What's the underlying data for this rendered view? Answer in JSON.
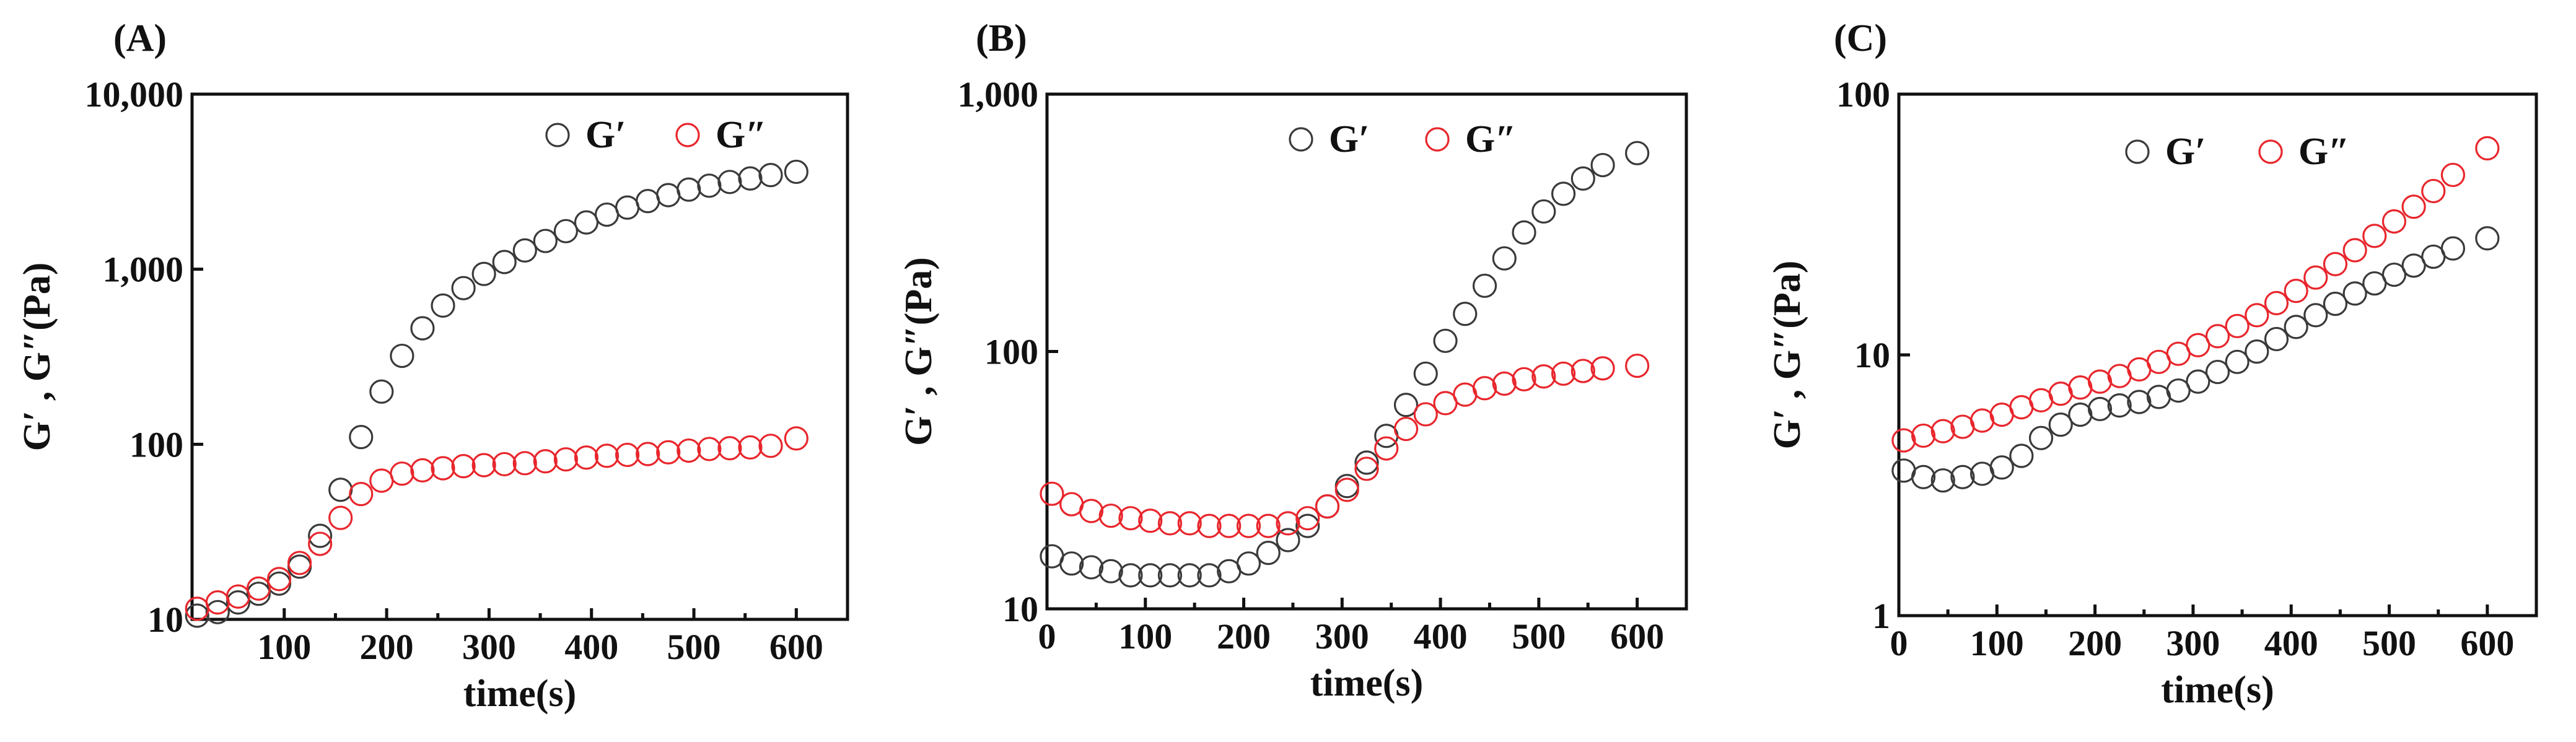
{
  "colors": {
    "g_prime": "#3a3a3a",
    "g_double_prime": "#e8262c",
    "axis": "#111111"
  },
  "chart_data": [
    {
      "type": "scatter",
      "panel_label": "(A)",
      "xlabel": "time(s)",
      "ylabel": "G′ , G″(Pa)",
      "yscale": "log",
      "xlim": [
        10,
        650
      ],
      "ylim": [
        10,
        10000
      ],
      "xticks": [
        100,
        200,
        300,
        400,
        500,
        600
      ],
      "xtick_labels": [
        "100",
        "200",
        "300",
        "400",
        "500",
        "600"
      ],
      "yticks": [
        10,
        100,
        1000,
        10000
      ],
      "ytick_labels": [
        "10",
        "100",
        "1,000",
        "10,000"
      ],
      "legend": [
        "G′",
        "G″"
      ],
      "legend_position": "top-right",
      "series": [
        {
          "name": "G′",
          "color_key": "g_prime",
          "x": [
            15,
            35,
            55,
            75,
            95,
            115,
            135,
            155,
            175,
            195,
            215,
            235,
            255,
            275,
            295,
            315,
            335,
            355,
            375,
            395,
            415,
            435,
            455,
            475,
            495,
            515,
            535,
            555,
            575,
            600
          ],
          "y": [
            10.5,
            11,
            12.5,
            14,
            16,
            20,
            30,
            55,
            110,
            200,
            320,
            460,
            620,
            780,
            940,
            1100,
            1280,
            1450,
            1650,
            1850,
            2050,
            2250,
            2450,
            2650,
            2850,
            3000,
            3150,
            3300,
            3450,
            3600
          ]
        },
        {
          "name": "G″",
          "color_key": "g_double_prime",
          "x": [
            15,
            35,
            55,
            75,
            95,
            115,
            135,
            155,
            175,
            195,
            215,
            235,
            255,
            275,
            295,
            315,
            335,
            355,
            375,
            395,
            415,
            435,
            455,
            475,
            495,
            515,
            535,
            555,
            575,
            600
          ],
          "y": [
            11.5,
            12.5,
            13.5,
            15,
            17,
            21,
            27,
            38,
            52,
            62,
            68,
            71,
            73,
            75,
            76,
            77,
            78,
            80,
            82,
            84,
            86,
            87,
            88,
            90,
            92,
            94,
            95,
            96,
            98,
            108
          ]
        }
      ]
    },
    {
      "type": "scatter",
      "panel_label": "(B)",
      "xlabel": "time(s)",
      "ylabel": "G′ , G″(Pa)",
      "yscale": "log",
      "xlim": [
        0,
        650
      ],
      "ylim": [
        10,
        1000
      ],
      "xticks": [
        0,
        100,
        200,
        300,
        400,
        500,
        600
      ],
      "xtick_labels": [
        "0",
        "100",
        "200",
        "300",
        "400",
        "500",
        "600"
      ],
      "yticks": [
        10,
        100,
        1000
      ],
      "ytick_labels": [
        "10",
        "100",
        "1,000"
      ],
      "legend": [
        "G′",
        "G″"
      ],
      "legend_position": "top-right",
      "series": [
        {
          "name": "G′",
          "color_key": "g_prime",
          "x": [
            5,
            25,
            45,
            65,
            85,
            105,
            125,
            145,
            165,
            185,
            205,
            225,
            245,
            265,
            285,
            305,
            325,
            345,
            365,
            385,
            405,
            425,
            445,
            465,
            485,
            505,
            525,
            545,
            565,
            600
          ],
          "y": [
            16,
            15,
            14.5,
            14,
            13.5,
            13.5,
            13.5,
            13.5,
            13.5,
            14,
            15,
            16.5,
            18.5,
            21,
            25,
            30,
            37,
            47,
            62,
            82,
            110,
            140,
            180,
            230,
            290,
            350,
            410,
            470,
            530,
            590
          ]
        },
        {
          "name": "G″",
          "color_key": "g_double_prime",
          "x": [
            5,
            25,
            45,
            65,
            85,
            105,
            125,
            145,
            165,
            185,
            205,
            225,
            245,
            265,
            285,
            305,
            325,
            345,
            365,
            385,
            405,
            425,
            445,
            465,
            485,
            505,
            525,
            545,
            565,
            600
          ],
          "y": [
            28,
            25.5,
            24,
            23,
            22.5,
            22,
            21.5,
            21.5,
            21,
            21,
            21,
            21,
            21.5,
            22.5,
            25,
            29,
            35,
            42,
            50,
            57,
            63,
            68,
            72,
            75,
            78,
            80,
            82,
            84,
            86,
            88
          ]
        }
      ]
    },
    {
      "type": "scatter",
      "panel_label": "(C)",
      "xlabel": "time(s)",
      "ylabel": "G′ , G″(Pa)",
      "yscale": "log",
      "xlim": [
        0,
        650
      ],
      "ylim": [
        1,
        100
      ],
      "xticks": [
        0,
        100,
        200,
        300,
        400,
        500,
        600
      ],
      "xtick_labels": [
        "0",
        "100",
        "200",
        "300",
        "400",
        "500",
        "600"
      ],
      "yticks": [
        1,
        10,
        100
      ],
      "ytick_labels": [
        "1",
        "10",
        "100"
      ],
      "legend": [
        "G′",
        "G″"
      ],
      "legend_position": "top-right",
      "series": [
        {
          "name": "G′",
          "color_key": "g_prime",
          "x": [
            5,
            25,
            45,
            65,
            85,
            105,
            125,
            145,
            165,
            185,
            205,
            225,
            245,
            265,
            285,
            305,
            325,
            345,
            365,
            385,
            405,
            425,
            445,
            465,
            485,
            505,
            525,
            545,
            565,
            600
          ],
          "y": [
            3.6,
            3.4,
            3.3,
            3.4,
            3.5,
            3.7,
            4.1,
            4.8,
            5.4,
            5.9,
            6.2,
            6.4,
            6.6,
            6.9,
            7.3,
            7.9,
            8.6,
            9.4,
            10.3,
            11.5,
            12.8,
            14.2,
            15.7,
            17.2,
            18.8,
            20.3,
            22,
            23.8,
            25.6,
            28
          ]
        },
        {
          "name": "G″",
          "color_key": "g_double_prime",
          "x": [
            5,
            25,
            45,
            65,
            85,
            105,
            125,
            145,
            165,
            185,
            205,
            225,
            245,
            265,
            285,
            305,
            325,
            345,
            365,
            385,
            405,
            425,
            445,
            465,
            485,
            505,
            525,
            545,
            565,
            600
          ],
          "y": [
            4.7,
            4.9,
            5.1,
            5.3,
            5.6,
            5.9,
            6.3,
            6.7,
            7.1,
            7.5,
            7.9,
            8.3,
            8.8,
            9.4,
            10.1,
            10.9,
            11.8,
            12.9,
            14.2,
            15.8,
            17.6,
            19.8,
            22.3,
            25.2,
            28.6,
            32.5,
            37,
            42.5,
            49,
            62
          ]
        }
      ]
    }
  ]
}
